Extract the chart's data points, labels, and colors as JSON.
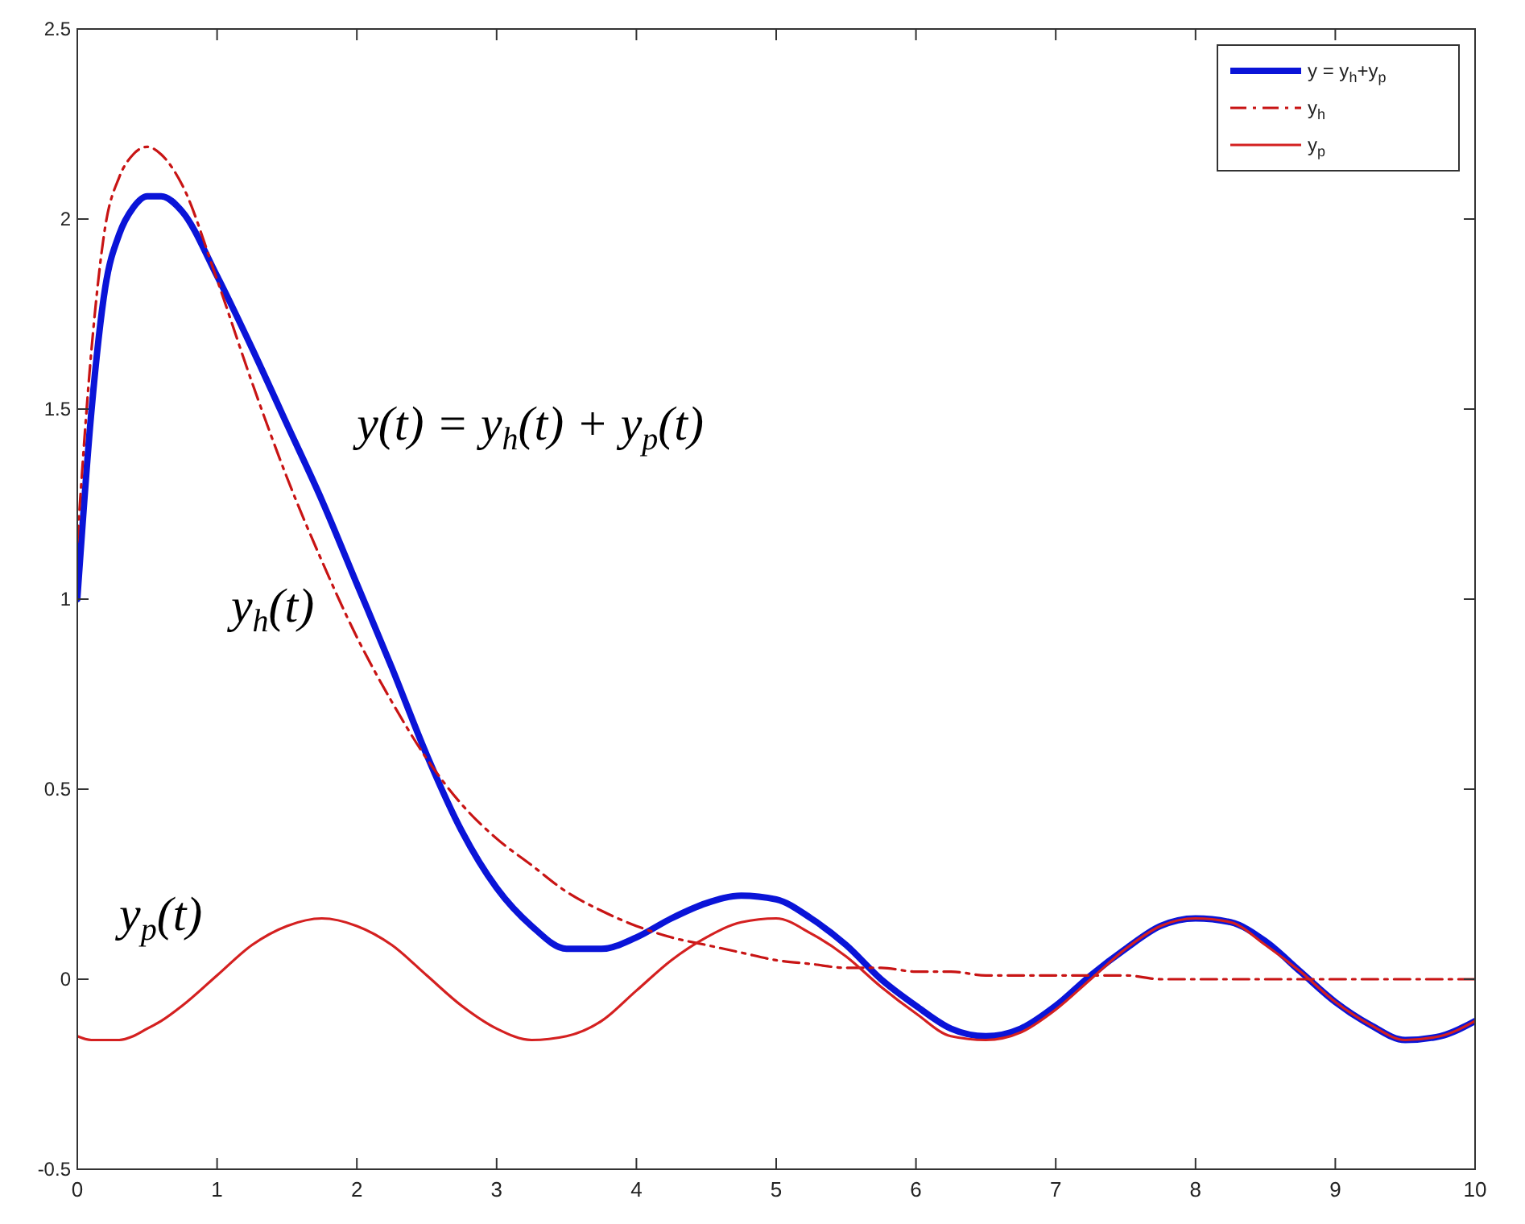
{
  "chart_data": {
    "type": "line",
    "x": [
      0,
      0.1,
      0.2,
      0.3,
      0.4,
      0.5,
      0.6,
      0.75,
      1,
      1.25,
      1.5,
      1.75,
      2,
      2.25,
      2.5,
      2.75,
      3,
      3.25,
      3.5,
      3.75,
      4,
      4.25,
      4.5,
      4.75,
      5,
      5.25,
      5.5,
      5.75,
      6,
      6.25,
      6.5,
      6.75,
      7,
      7.25,
      7.5,
      7.75,
      8,
      8.25,
      8.5,
      8.75,
      9,
      9.25,
      9.5,
      9.75,
      10
    ],
    "series": [
      {
        "name": "y = y$_{h}$+y$_{p}$",
        "color": "#0a14d8",
        "line_style": "solid",
        "values": [
          1.0,
          1.49,
          1.82,
          1.96,
          2.03,
          2.06,
          2.06,
          2.02,
          1.85,
          1.66,
          1.46,
          1.26,
          1.04,
          0.82,
          0.59,
          0.39,
          0.24,
          0.14,
          0.08,
          0.08,
          0.11,
          0.16,
          0.2,
          0.22,
          0.21,
          0.16,
          0.09,
          0.0,
          -0.07,
          -0.13,
          -0.15,
          -0.13,
          -0.07,
          0.01,
          0.08,
          0.14,
          0.16,
          0.15,
          0.1,
          0.02,
          -0.06,
          -0.12,
          -0.16,
          -0.15,
          -0.11
        ]
      },
      {
        "name": "y$_{h}$",
        "color": "#c81414",
        "line_style": "dashed",
        "values": [
          1.15,
          1.65,
          1.98,
          2.11,
          2.17,
          2.19,
          2.17,
          2.09,
          1.84,
          1.57,
          1.32,
          1.1,
          0.9,
          0.73,
          0.58,
          0.46,
          0.37,
          0.3,
          0.23,
          0.18,
          0.14,
          0.11,
          0.09,
          0.07,
          0.05,
          0.04,
          0.03,
          0.03,
          0.02,
          0.02,
          0.01,
          0.01,
          0.01,
          0.01,
          0.01,
          0.0,
          0.0,
          0.0,
          0.0,
          0.0,
          0.0,
          0.0,
          0.0,
          0.0,
          0.0
        ]
      },
      {
        "name": "y$_{p}$",
        "color": "#d42020",
        "line_style": "solid",
        "values": [
          -0.15,
          -0.16,
          -0.16,
          -0.16,
          -0.15,
          -0.13,
          -0.11,
          -0.07,
          0.01,
          0.09,
          0.14,
          0.16,
          0.14,
          0.09,
          0.01,
          -0.07,
          -0.13,
          -0.16,
          -0.15,
          -0.11,
          -0.03,
          0.05,
          0.11,
          0.15,
          0.16,
          0.12,
          0.06,
          -0.02,
          -0.09,
          -0.15,
          -0.16,
          -0.14,
          -0.08,
          0.0,
          0.08,
          0.14,
          0.16,
          0.15,
          0.09,
          0.02,
          -0.06,
          -0.12,
          -0.16,
          -0.15,
          -0.11
        ]
      }
    ],
    "annotations": [
      "y(t) = y$_{h}$(t) + y$_{p}$(t)",
      "y$_{h}$(t)",
      "y$_{p}$(t)"
    ],
    "xlim": [
      0,
      10
    ],
    "xticks": [
      0,
      1,
      2,
      3,
      4,
      5,
      6,
      7,
      8,
      9,
      10
    ],
    "ylim": [
      -0.5,
      2.5
    ],
    "yticks": [
      -0.5,
      0,
      0.5,
      1,
      1.5,
      2,
      2.5
    ],
    "grid": false,
    "legend": "top right"
  }
}
